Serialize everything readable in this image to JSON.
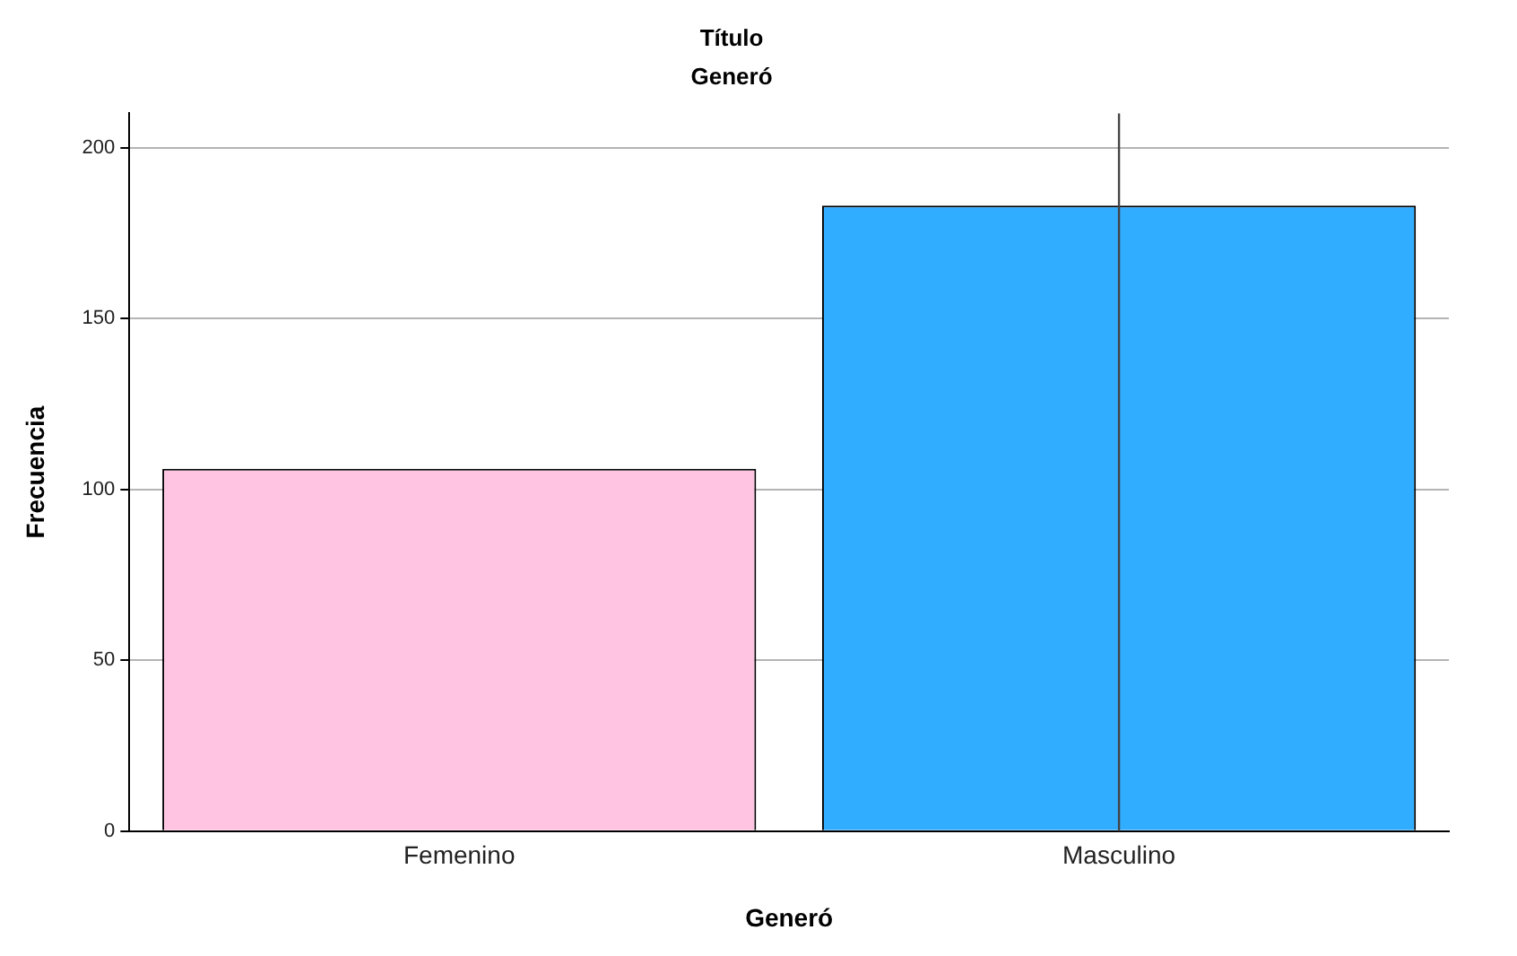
{
  "chart_data": {
    "type": "bar",
    "title": "Título",
    "subtitle": "Generó",
    "xlabel": "Generó",
    "ylabel": "Frecuencia",
    "categories": [
      "Femenino",
      "Masculino"
    ],
    "values": [
      106,
      183
    ],
    "colors": [
      "#fec4e1",
      "#31adff"
    ],
    "ylim": [
      0,
      210
    ],
    "yticks": [
      0,
      50,
      100,
      150,
      200
    ],
    "grid": "y",
    "legend": false,
    "ref_lines": [
      {
        "axis": "x",
        "value": "Masculino",
        "color": "#444444"
      }
    ]
  }
}
